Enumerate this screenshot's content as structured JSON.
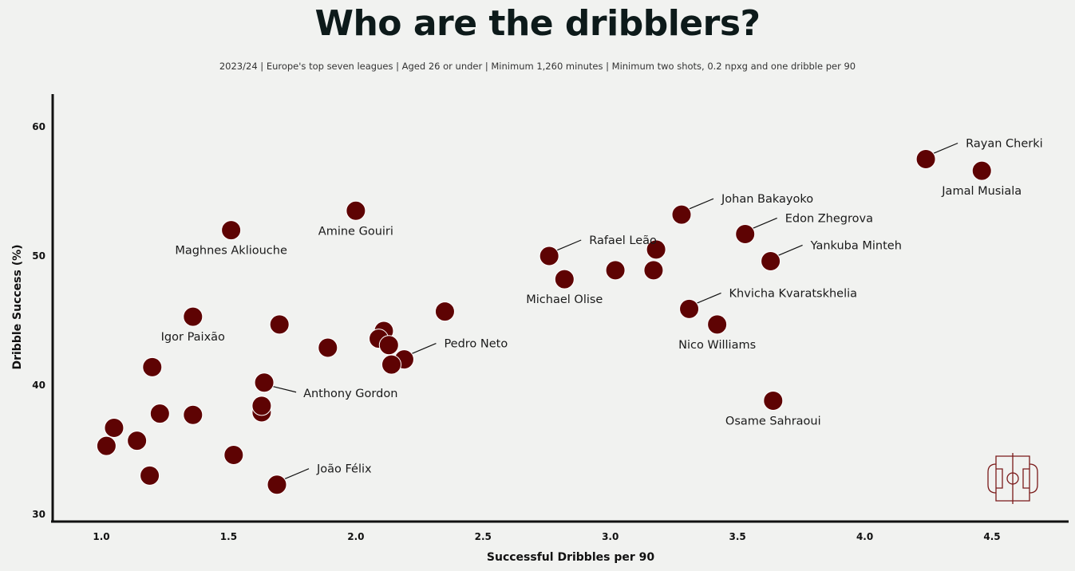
{
  "title": "Who are the dribblers?",
  "subtitle": "2023/24 | Europe's top seven leagues | Aged 26 or under | Minimum 1,260 minutes | Minimum two shots, 0.2 npxg and one dribble per 90",
  "colors": {
    "background": "#f1f2f0",
    "point": "#5e0303",
    "logo": "#7a1a1a"
  },
  "logo": "football-pitch-icon",
  "chart_data": {
    "type": "scatter",
    "title": "Who are the dribblers?",
    "xlabel": "Successful Dribbles per 90",
    "ylabel": "Dribble Success (%)",
    "xlim": [
      0.8,
      4.8
    ],
    "ylim": [
      29.5,
      62.5
    ],
    "xticks": [
      1.0,
      1.5,
      2.0,
      2.5,
      3.0,
      3.5,
      4.0,
      4.5
    ],
    "xtick_labels": [
      "1.0",
      "1.5",
      "2.0",
      "2.5",
      "3.0",
      "3.5",
      "4.0",
      "4.5"
    ],
    "yticks": [
      30,
      40,
      50,
      60
    ],
    "ytick_labels": [
      "30",
      "40",
      "50",
      "60"
    ],
    "grid": false,
    "points": [
      {
        "x": 4.24,
        "y": 57.5,
        "label": "Rayan Cherki",
        "label_pos": "upper-right-leader"
      },
      {
        "x": 4.46,
        "y": 56.6,
        "label": "Jamal Musiala",
        "label_pos": "below"
      },
      {
        "x": 3.28,
        "y": 53.2,
        "label": "Johan Bakayoko",
        "label_pos": "upper-right-leader"
      },
      {
        "x": 3.53,
        "y": 51.7,
        "label": "Edon Zhegrova",
        "label_pos": "upper-right-leader"
      },
      {
        "x": 3.63,
        "y": 49.6,
        "label": "Yankuba Minteh",
        "label_pos": "upper-right-leader"
      },
      {
        "x": 2.76,
        "y": 50.0,
        "label": "Rafael Leão",
        "label_pos": "upper-right-leader"
      },
      {
        "x": 2.82,
        "y": 48.2,
        "label": "Michael Olise",
        "label_pos": "below"
      },
      {
        "x": 3.31,
        "y": 45.9,
        "label": "Khvicha Kvaratskhelia",
        "label_pos": "upper-right-leader"
      },
      {
        "x": 3.42,
        "y": 44.7,
        "label": "Nico Williams",
        "label_pos": "below"
      },
      {
        "x": 3.64,
        "y": 38.8,
        "label": "Osame Sahraoui",
        "label_pos": "below"
      },
      {
        "x": 2.0,
        "y": 53.5,
        "label": "Amine Gouiri",
        "label_pos": "below"
      },
      {
        "x": 1.51,
        "y": 52.0,
        "label": "Maghnes Akliouche",
        "label_pos": "below"
      },
      {
        "x": 1.36,
        "y": 45.3,
        "label": "Igor Paixão",
        "label_pos": "below"
      },
      {
        "x": 2.19,
        "y": 42.0,
        "label": "Pedro Neto",
        "label_pos": "upper-right-leader"
      },
      {
        "x": 1.64,
        "y": 40.2,
        "label": "Anthony Gordon",
        "label_pos": "lower-right-leader"
      },
      {
        "x": 1.69,
        "y": 32.3,
        "label": "João Félix",
        "label_pos": "upper-right-leader"
      },
      {
        "x": 3.02,
        "y": 48.9,
        "label": ""
      },
      {
        "x": 3.18,
        "y": 50.5,
        "label": ""
      },
      {
        "x": 3.17,
        "y": 48.9,
        "label": ""
      },
      {
        "x": 2.35,
        "y": 45.7,
        "label": ""
      },
      {
        "x": 1.7,
        "y": 44.7,
        "label": ""
      },
      {
        "x": 1.89,
        "y": 42.9,
        "label": ""
      },
      {
        "x": 2.11,
        "y": 44.2,
        "label": ""
      },
      {
        "x": 2.09,
        "y": 43.6,
        "label": ""
      },
      {
        "x": 2.13,
        "y": 43.1,
        "label": ""
      },
      {
        "x": 2.14,
        "y": 41.6,
        "label": ""
      },
      {
        "x": 1.2,
        "y": 41.4,
        "label": ""
      },
      {
        "x": 1.63,
        "y": 37.9,
        "label": ""
      },
      {
        "x": 1.63,
        "y": 38.4,
        "label": ""
      },
      {
        "x": 1.23,
        "y": 37.8,
        "label": ""
      },
      {
        "x": 1.36,
        "y": 37.7,
        "label": ""
      },
      {
        "x": 1.05,
        "y": 36.7,
        "label": ""
      },
      {
        "x": 1.14,
        "y": 35.7,
        "label": ""
      },
      {
        "x": 1.02,
        "y": 35.3,
        "label": ""
      },
      {
        "x": 1.52,
        "y": 34.6,
        "label": ""
      },
      {
        "x": 1.19,
        "y": 33.0,
        "label": ""
      }
    ]
  }
}
